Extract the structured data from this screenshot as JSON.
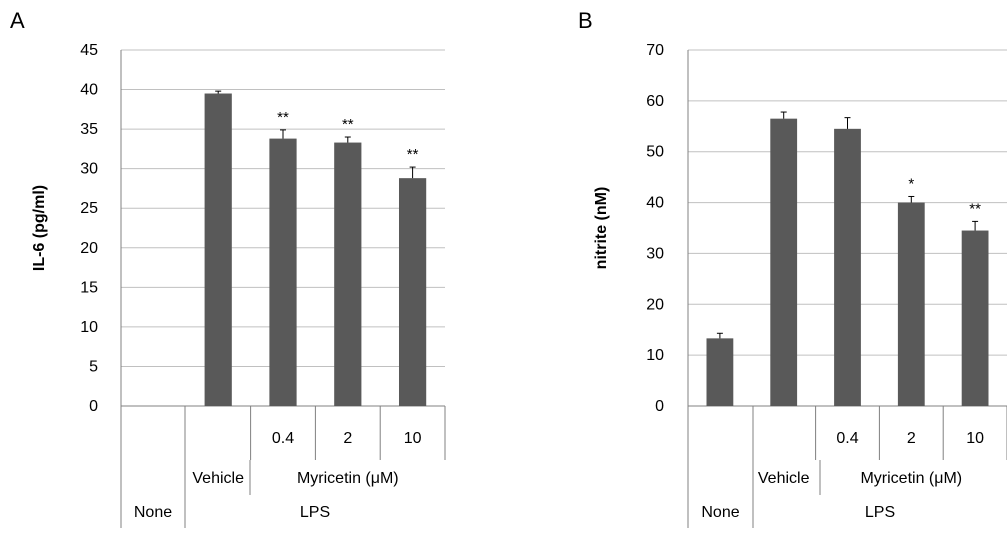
{
  "chart_data": [
    {
      "panel": "A",
      "type": "bar",
      "ylabel": "IL-6 (pg/ml)",
      "ylim": [
        0,
        45
      ],
      "yticks": [
        0,
        5,
        10,
        15,
        20,
        25,
        30,
        35,
        40,
        45
      ],
      "grid": true,
      "categories": [
        "None",
        "Vehicle",
        "0.4",
        "2",
        "10"
      ],
      "values": [
        0,
        39.5,
        33.8,
        33.3,
        28.8
      ],
      "errors": [
        0,
        0.3,
        1.1,
        0.7,
        1.4
      ],
      "significance": [
        "",
        "",
        "**",
        "**",
        "**"
      ],
      "group_labels": {
        "vehicle": "Vehicle",
        "treatment": "Myricetin (μM)",
        "none": "None",
        "stimulus": "LPS"
      }
    },
    {
      "panel": "B",
      "type": "bar",
      "ylabel": "nitrite (nM)",
      "ylim": [
        0,
        70
      ],
      "yticks": [
        0,
        10,
        20,
        30,
        40,
        50,
        60,
        70
      ],
      "grid": true,
      "categories": [
        "None",
        "Vehicle",
        "0.4",
        "2",
        "10"
      ],
      "values": [
        13.3,
        56.5,
        54.5,
        40.0,
        34.5
      ],
      "errors": [
        1.0,
        1.3,
        2.2,
        1.2,
        1.8
      ],
      "significance": [
        "",
        "",
        "",
        "*",
        "**"
      ],
      "group_labels": {
        "vehicle": "Vehicle",
        "treatment": "Myricetin (μM)",
        "none": "None",
        "stimulus": "LPS"
      }
    }
  ],
  "style": {
    "bar_color": "#595959",
    "grid_color": "#c0c0c0",
    "axis_color": "#808080"
  }
}
